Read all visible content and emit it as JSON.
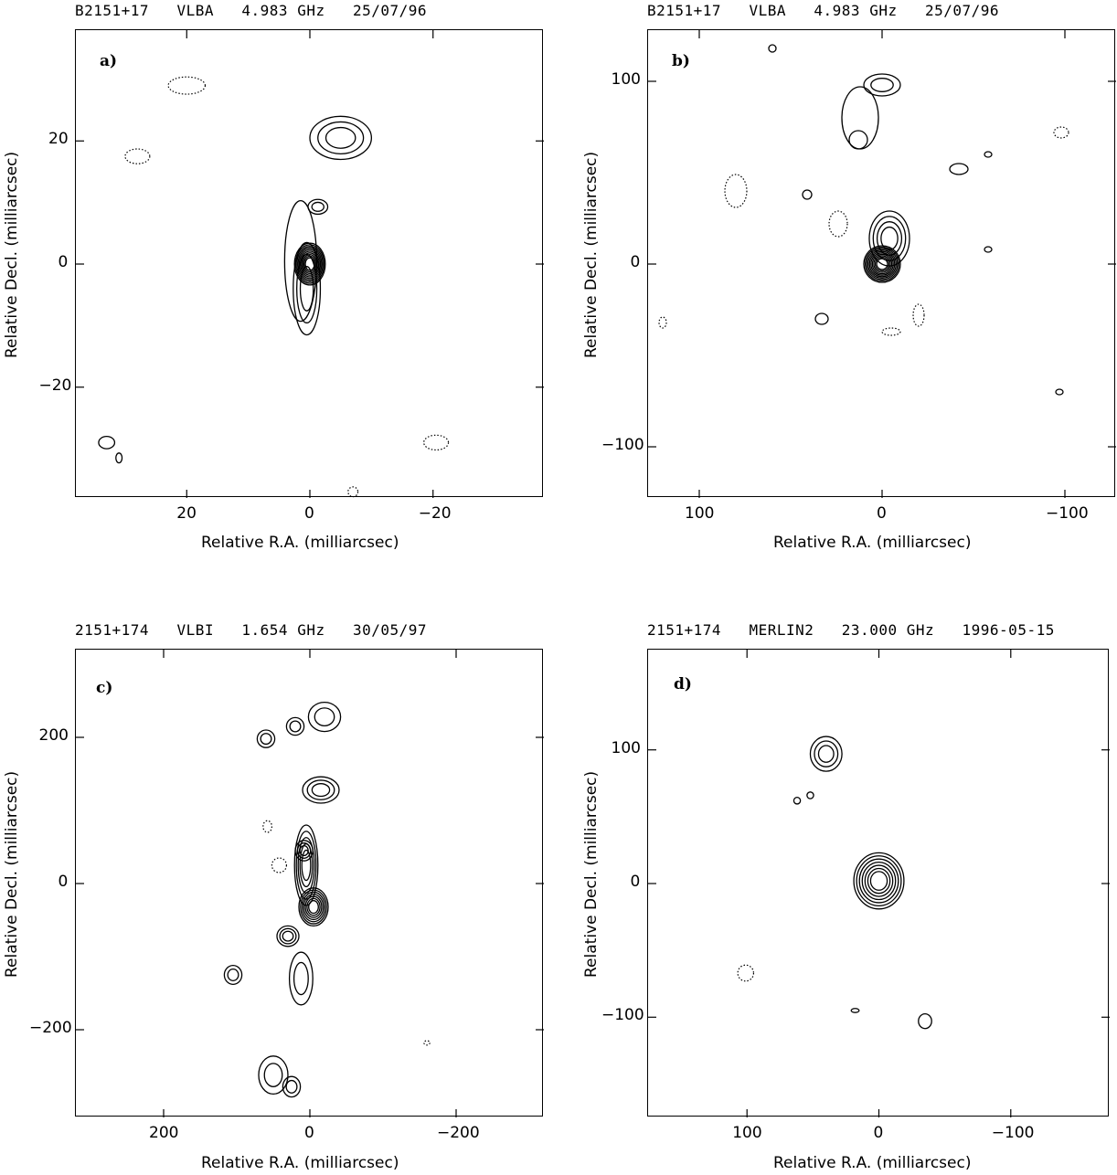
{
  "chart_data": [
    {
      "type": "contour",
      "panel_label": "a)",
      "title": "B2151+17   VLBA   4.983 GHz   25/07/96",
      "xlabel": "Relative R.A. (milliarcsec)",
      "ylabel": "Relative Decl. (milliarcsec)",
      "xlim": [
        38,
        -38
      ],
      "ylim": [
        -38,
        38
      ],
      "xticks": [
        20,
        0,
        -20
      ],
      "yticks": [
        20,
        0,
        -20
      ],
      "xtick_labels": [
        "20",
        "0",
        "−20"
      ],
      "ytick_labels": [
        "20",
        "0",
        "−20"
      ],
      "components": [
        {
          "x": 0,
          "y": 0,
          "rx": 2.5,
          "ry": 3.4,
          "levels": 10,
          "style": "solid"
        },
        {
          "x": 0.5,
          "y": -4,
          "rx": 2.2,
          "ry": 7.5,
          "levels": 3,
          "style": "solid"
        },
        {
          "x": 1.5,
          "y": 0.5,
          "rx": 2.6,
          "ry": 9.8,
          "levels": 1,
          "style": "solid"
        },
        {
          "x": -5,
          "y": 20.5,
          "rx": 5,
          "ry": 3.5,
          "levels": 3,
          "style": "solid"
        },
        {
          "x": -1.3,
          "y": 9.3,
          "rx": 1.6,
          "ry": 1.2,
          "levels": 2,
          "style": "solid"
        },
        {
          "x": 33,
          "y": -29,
          "rx": 1.3,
          "ry": 1.0,
          "levels": 1,
          "style": "solid"
        },
        {
          "x": 31,
          "y": -31.5,
          "rx": 0.5,
          "ry": 0.8,
          "levels": 1,
          "style": "solid"
        },
        {
          "x": 20,
          "y": 29,
          "rx": 3,
          "ry": 1.4,
          "levels": 1,
          "style": "dotted"
        },
        {
          "x": 28,
          "y": 17.5,
          "rx": 2,
          "ry": 1.2,
          "levels": 1,
          "style": "dotted"
        },
        {
          "x": -20.5,
          "y": -29,
          "rx": 2,
          "ry": 1.2,
          "levels": 1,
          "style": "dotted"
        },
        {
          "x": -7,
          "y": -37,
          "rx": 0.8,
          "ry": 0.8,
          "levels": 1,
          "style": "dotted"
        }
      ]
    },
    {
      "type": "contour",
      "panel_label": "b)",
      "title": "B2151+17   VLBA   4.983 GHz   25/07/96",
      "xlabel": "Relative R.A. (milliarcsec)",
      "ylabel": "Relative Decl. (milliarcsec)",
      "xlim": [
        128,
        -128
      ],
      "ylim": [
        -128,
        128
      ],
      "xticks": [
        100,
        0,
        -100
      ],
      "yticks": [
        100,
        0,
        -100
      ],
      "xtick_labels": [
        "100",
        "0",
        "−100"
      ],
      "ytick_labels": [
        "100",
        "0",
        "−100"
      ],
      "components": [
        {
          "x": 0,
          "y": 0,
          "rx": 10,
          "ry": 10,
          "levels": 10,
          "style": "solid"
        },
        {
          "x": -4,
          "y": 14,
          "rx": 11,
          "ry": 15,
          "levels": 4,
          "style": "solid"
        },
        {
          "x": 0,
          "y": 98,
          "rx": 10,
          "ry": 6,
          "levels": 2,
          "style": "solid"
        },
        {
          "x": 12,
          "y": 80,
          "rx": 10,
          "ry": 17,
          "levels": 1,
          "style": "solid"
        },
        {
          "x": 13,
          "y": 68,
          "rx": 5,
          "ry": 5,
          "levels": 1,
          "style": "solid"
        },
        {
          "x": -42,
          "y": 52,
          "rx": 5,
          "ry": 3,
          "levels": 1,
          "style": "solid"
        },
        {
          "x": 33,
          "y": -30,
          "rx": 3.5,
          "ry": 3,
          "levels": 1,
          "style": "solid"
        },
        {
          "x": 41,
          "y": 38,
          "rx": 2.5,
          "ry": 2.5,
          "levels": 1,
          "style": "solid"
        },
        {
          "x": 60,
          "y": 118,
          "rx": 2,
          "ry": 2,
          "levels": 1,
          "style": "solid"
        },
        {
          "x": -58,
          "y": 60,
          "rx": 2,
          "ry": 1.5,
          "levels": 1,
          "style": "solid"
        },
        {
          "x": -58,
          "y": 8,
          "rx": 2,
          "ry": 1.5,
          "levels": 1,
          "style": "solid"
        },
        {
          "x": -97,
          "y": -70,
          "rx": 2,
          "ry": 1.5,
          "levels": 1,
          "style": "solid"
        },
        {
          "x": 80,
          "y": 40,
          "rx": 6,
          "ry": 9,
          "levels": 1,
          "style": "dotted"
        },
        {
          "x": 24,
          "y": 22,
          "rx": 5,
          "ry": 7,
          "levels": 1,
          "style": "dotted"
        },
        {
          "x": -20,
          "y": -28,
          "rx": 3,
          "ry": 6,
          "levels": 1,
          "style": "dotted"
        },
        {
          "x": -5,
          "y": -37,
          "rx": 5,
          "ry": 2,
          "levels": 1,
          "style": "dotted"
        },
        {
          "x": 120,
          "y": -32,
          "rx": 2,
          "ry": 3,
          "levels": 1,
          "style": "dotted"
        },
        {
          "x": -98,
          "y": 72,
          "rx": 4,
          "ry": 3,
          "levels": 1,
          "style": "dotted"
        }
      ]
    },
    {
      "type": "contour",
      "panel_label": "c)",
      "title": "2151+174   VLBI   1.654 GHz   30/05/97",
      "xlabel": "Relative R.A. (milliarcsec)",
      "ylabel": "Relative Decl. (milliarcsec)",
      "xlim": [
        320,
        -320
      ],
      "ylim": [
        -320,
        320
      ],
      "xticks": [
        200,
        0,
        -200
      ],
      "yticks": [
        200,
        0,
        -200
      ],
      "xtick_labels": [
        "200",
        "0",
        "−200"
      ],
      "ytick_labels": [
        "200",
        "0",
        "−200"
      ],
      "components": [
        {
          "x": -5,
          "y": -32,
          "rx": 20,
          "ry": 26,
          "levels": 7,
          "style": "solid"
        },
        {
          "x": 5,
          "y": 25,
          "rx": 16,
          "ry": 55,
          "levels": 5,
          "style": "solid"
        },
        {
          "x": 8,
          "y": 45,
          "rx": 12,
          "ry": 14,
          "levels": 3,
          "style": "solid"
        },
        {
          "x": -15,
          "y": 128,
          "rx": 25,
          "ry": 18,
          "levels": 3,
          "style": "solid"
        },
        {
          "x": -20,
          "y": 228,
          "rx": 22,
          "ry": 20,
          "levels": 2,
          "style": "solid"
        },
        {
          "x": 20,
          "y": 215,
          "rx": 12,
          "ry": 12,
          "levels": 2,
          "style": "solid"
        },
        {
          "x": 60,
          "y": 198,
          "rx": 12,
          "ry": 12,
          "levels": 2,
          "style": "solid"
        },
        {
          "x": 30,
          "y": -72,
          "rx": 15,
          "ry": 14,
          "levels": 3,
          "style": "solid"
        },
        {
          "x": 12,
          "y": -130,
          "rx": 16,
          "ry": 36,
          "levels": 2,
          "style": "solid"
        },
        {
          "x": 105,
          "y": -125,
          "rx": 12,
          "ry": 13,
          "levels": 2,
          "style": "solid"
        },
        {
          "x": 50,
          "y": -262,
          "rx": 20,
          "ry": 26,
          "levels": 2,
          "style": "solid"
        },
        {
          "x": 25,
          "y": -278,
          "rx": 12,
          "ry": 14,
          "levels": 2,
          "style": "solid"
        },
        {
          "x": 42,
          "y": 25,
          "rx": 10,
          "ry": 10,
          "levels": 1,
          "style": "dotted"
        },
        {
          "x": 58,
          "y": 78,
          "rx": 6,
          "ry": 8,
          "levels": 1,
          "style": "dotted"
        },
        {
          "x": -160,
          "y": -218,
          "rx": 4,
          "ry": 3,
          "levels": 1,
          "style": "dotted"
        }
      ]
    },
    {
      "type": "contour",
      "panel_label": "d)",
      "title": "2151+174   MERLIN2   23.000 GHz   1996-05-15",
      "xlabel": "Relative R.A. (milliarcsec)",
      "ylabel": "Relative Decl. (milliarcsec)",
      "xlim": [
        175,
        -175
      ],
      "ylim": [
        -175,
        175
      ],
      "xticks": [
        100,
        0,
        -100
      ],
      "yticks": [
        100,
        0,
        -100
      ],
      "xtick_labels": [
        "100",
        "0",
        "−100"
      ],
      "ytick_labels": [
        "100",
        "0",
        "−100"
      ],
      "components": [
        {
          "x": 0,
          "y": 2,
          "rx": 19,
          "ry": 21,
          "levels": 7,
          "style": "solid"
        },
        {
          "x": 40,
          "y": 97,
          "rx": 12,
          "ry": 13,
          "levels": 3,
          "style": "solid"
        },
        {
          "x": 62,
          "y": 62,
          "rx": 2.5,
          "ry": 2.5,
          "levels": 1,
          "style": "solid"
        },
        {
          "x": 52,
          "y": 66,
          "rx": 2.5,
          "ry": 2.5,
          "levels": 1,
          "style": "solid"
        },
        {
          "x": 18,
          "y": -95,
          "rx": 3,
          "ry": 1.5,
          "levels": 1,
          "style": "solid"
        },
        {
          "x": -35,
          "y": -103,
          "rx": 5,
          "ry": 5.5,
          "levels": 1,
          "style": "solid"
        },
        {
          "x": 101,
          "y": -67,
          "rx": 6,
          "ry": 6,
          "levels": 1,
          "style": "dotted"
        }
      ]
    }
  ]
}
